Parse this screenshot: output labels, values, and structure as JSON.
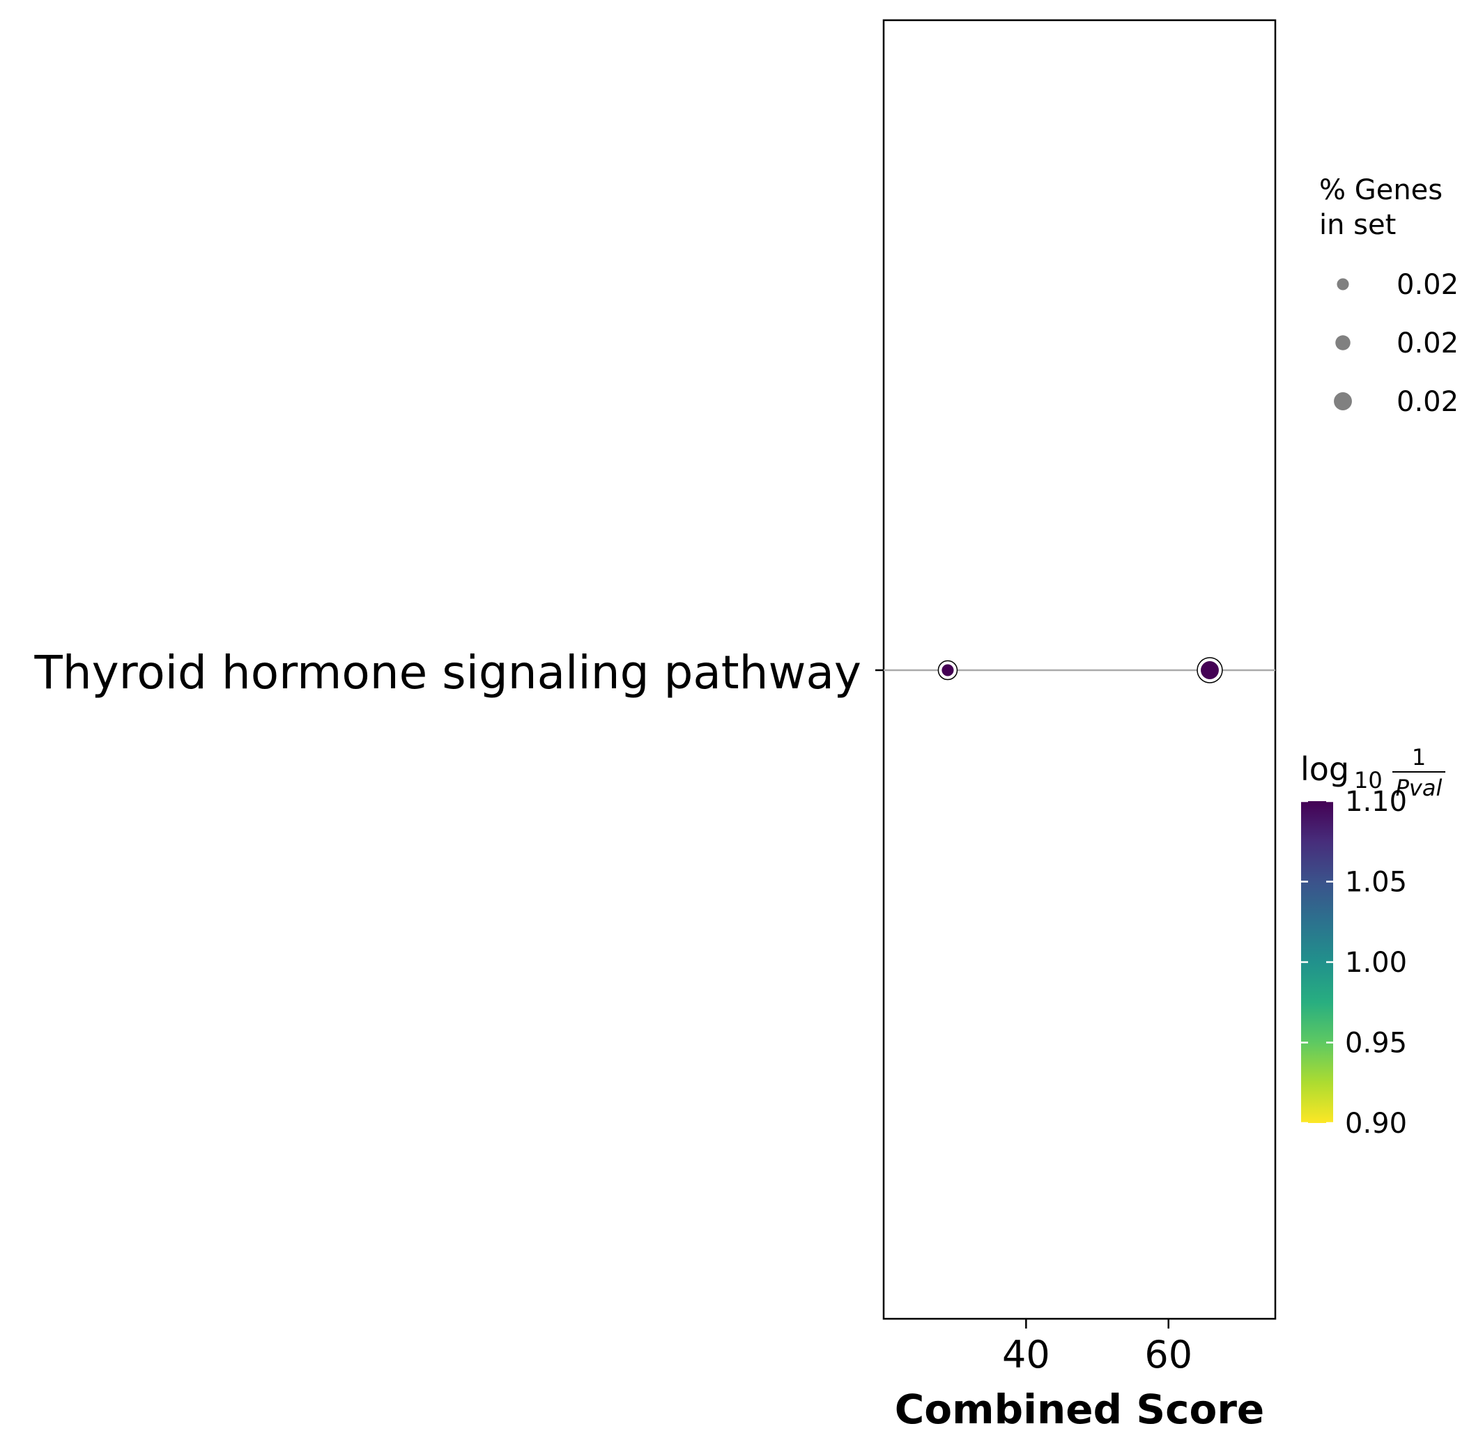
{
  "chart_data": {
    "type": "scatter",
    "xlabel": "Combined Score",
    "xlim": [
      20,
      75
    ],
    "xticks": [
      40,
      60
    ],
    "categories": [
      "Thyroid hormone signaling pathway"
    ],
    "points": [
      {
        "category": "Thyroid hormone signaling pathway",
        "x": 29.0,
        "size": 0.0205,
        "color_value": 1.1
      },
      {
        "category": "Thyroid hormone signaling pathway",
        "x": 65.8,
        "size": 0.0245,
        "color_value": 1.1
      }
    ],
    "size_legend": {
      "title_line1": "% Genes",
      "title_line2": "in set",
      "entries": [
        {
          "label": "0.02",
          "size": 0.0205
        },
        {
          "label": "0.02",
          "size": 0.0225
        },
        {
          "label": "0.02",
          "size": 0.0245
        }
      ]
    },
    "colorbar": {
      "title_main": "log",
      "title_sub": "10",
      "title_frac_num": "1",
      "title_frac_den": "Pval",
      "range": [
        0.9,
        1.1
      ],
      "ticks": [
        "0.90",
        "0.95",
        "1.00",
        "1.05",
        "1.10"
      ],
      "colormap": "viridis"
    },
    "grid": false,
    "legend_position": "right"
  }
}
